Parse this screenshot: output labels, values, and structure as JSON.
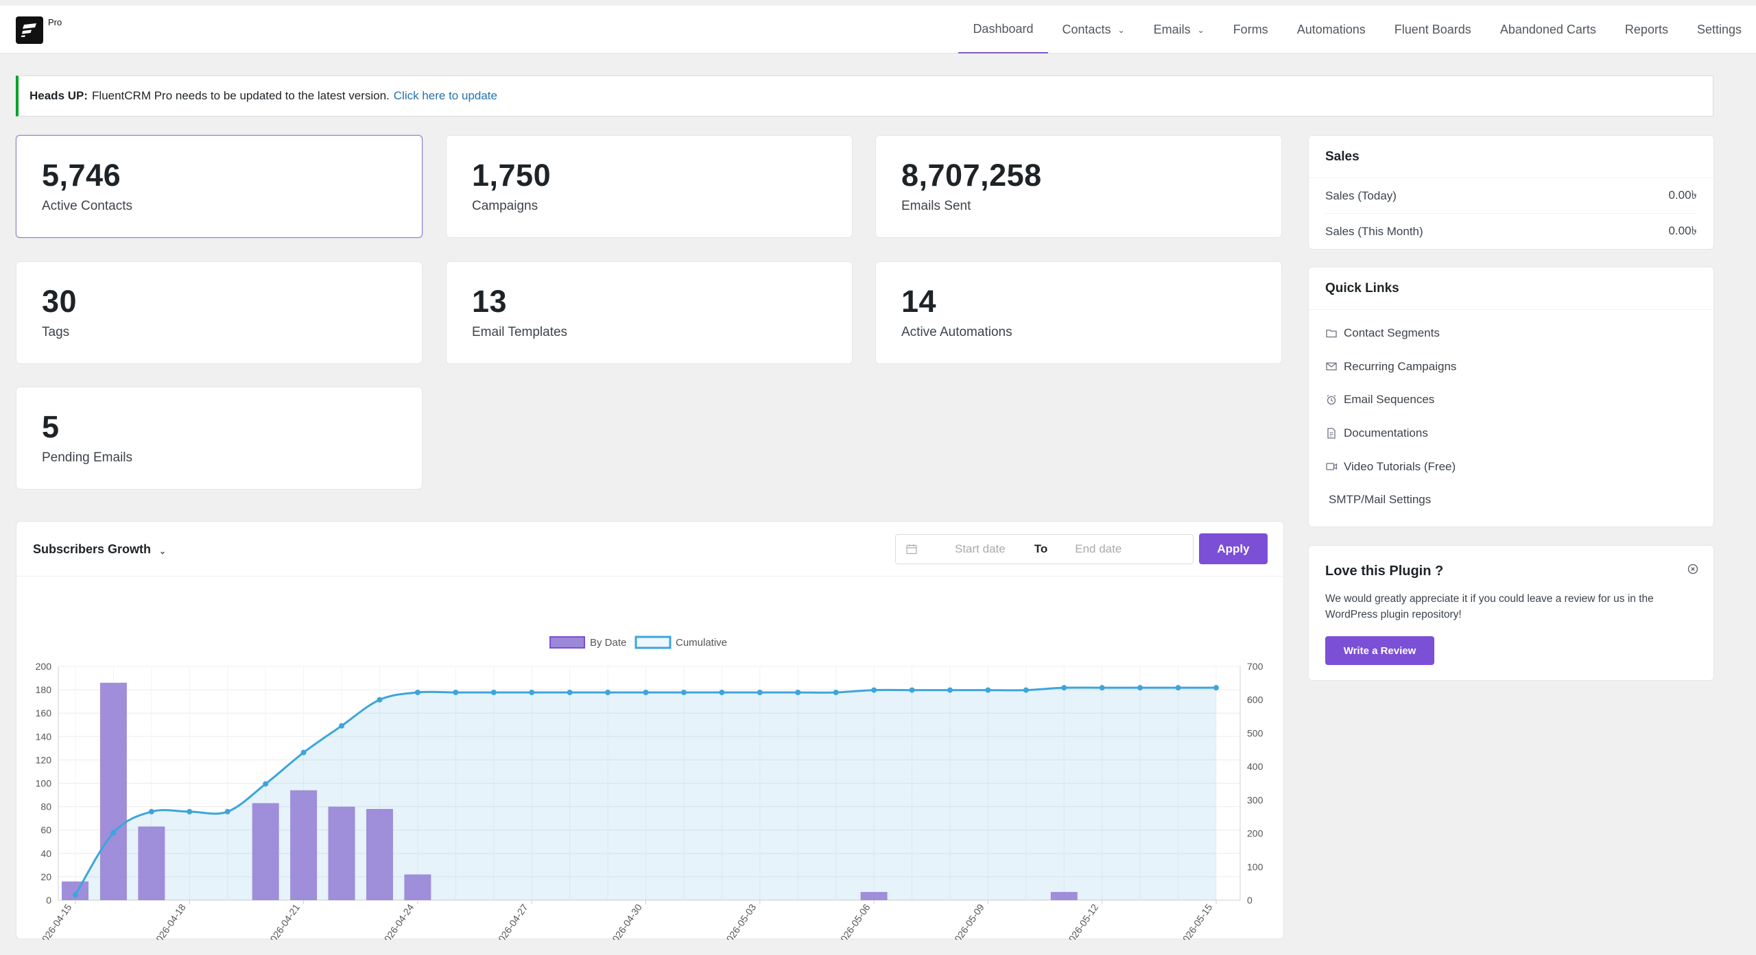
{
  "brand": {
    "badge": "Pro"
  },
  "nav": {
    "items": [
      {
        "label": "Dashboard",
        "active": true,
        "dropdown": false
      },
      {
        "label": "Contacts",
        "active": false,
        "dropdown": true
      },
      {
        "label": "Emails",
        "active": false,
        "dropdown": true
      },
      {
        "label": "Forms",
        "active": false,
        "dropdown": false
      },
      {
        "label": "Automations",
        "active": false,
        "dropdown": false
      },
      {
        "label": "Fluent Boards",
        "active": false,
        "dropdown": false
      },
      {
        "label": "Abandoned Carts",
        "active": false,
        "dropdown": false
      },
      {
        "label": "Reports",
        "active": false,
        "dropdown": false
      },
      {
        "label": "Settings",
        "active": false,
        "dropdown": false
      }
    ]
  },
  "notice": {
    "heading": "Heads UP:",
    "message": "FluentCRM Pro needs to be updated to the latest version.",
    "link": "Click here to update",
    "accent": "#00a32a"
  },
  "stats": [
    {
      "value": "5,746",
      "label": "Active Contacts"
    },
    {
      "value": "1,750",
      "label": "Campaigns"
    },
    {
      "value": "8,707,258",
      "label": "Emails Sent"
    },
    {
      "value": "30",
      "label": "Tags"
    },
    {
      "value": "13",
      "label": "Email Templates"
    },
    {
      "value": "14",
      "label": "Active Automations"
    },
    {
      "value": "5",
      "label": "Pending Emails"
    }
  ],
  "sales": {
    "title": "Sales",
    "rows": [
      {
        "label": "Sales (Today)",
        "value": "0.00৳"
      },
      {
        "label": "Sales (This Month)",
        "value": "0.00৳"
      }
    ]
  },
  "quick_links": {
    "title": "Quick Links",
    "items": [
      {
        "label": "Contact Segments",
        "icon": "folder-icon"
      },
      {
        "label": "Recurring Campaigns",
        "icon": "mail-icon"
      },
      {
        "label": "Email Sequences",
        "icon": "alarm-clock-icon"
      },
      {
        "label": "Documentations",
        "icon": "document-icon"
      },
      {
        "label": "Video Tutorials (Free)",
        "icon": "video-icon"
      },
      {
        "label": "SMTP/Mail Settings",
        "icon": ""
      }
    ]
  },
  "love": {
    "title": "Love this Plugin ?",
    "text": "We would greatly appreciate it if you could leave a review for us in the WordPress plugin repository!",
    "button": "Write a Review"
  },
  "growth": {
    "title": "Subscribers Growth",
    "start_placeholder": "Start date",
    "to_label": "To",
    "end_placeholder": "End date",
    "apply_label": "Apply",
    "accent": "#7b4fd6"
  },
  "chart_data": {
    "type": "bar",
    "x": [
      "2026-04-15",
      "2026-04-16",
      "2026-04-17",
      "2026-04-18",
      "2026-04-19",
      "2026-04-20",
      "2026-04-21",
      "2026-04-22",
      "2026-04-23",
      "2026-04-24",
      "2026-04-25",
      "2026-04-26",
      "2026-04-27",
      "2026-04-28",
      "2026-04-29",
      "2026-04-30",
      "2026-05-01",
      "2026-05-02",
      "2026-05-03",
      "2026-05-04",
      "2026-05-05",
      "2026-05-06",
      "2026-05-07",
      "2026-05-08",
      "2026-05-09",
      "2026-05-10",
      "2026-05-11",
      "2026-05-12",
      "2026-05-13",
      "2026-05-14",
      "2026-05-15"
    ],
    "tick_labels": [
      "2026-04-15",
      "2026-04-18",
      "2026-04-21",
      "2026-04-24",
      "2026-04-27",
      "2026-04-30",
      "2026-05-03",
      "2026-05-06",
      "2026-05-09",
      "2026-05-12",
      "2026-05-15"
    ],
    "series": [
      {
        "name": "By Date",
        "type": "bar",
        "axis": "left",
        "color": "#9b88d8",
        "values": [
          16,
          186,
          63,
          0,
          0,
          83,
          94,
          80,
          78,
          22,
          0,
          0,
          0,
          0,
          0,
          0,
          0,
          0,
          0,
          0,
          0,
          7,
          0,
          0,
          0,
          0,
          7,
          0,
          0,
          0,
          0
        ]
      },
      {
        "name": "Cumulative",
        "type": "line",
        "axis": "right",
        "color": "#3da5dc",
        "values": [
          16,
          202,
          265,
          265,
          265,
          348,
          442,
          522,
          600,
          622,
          622,
          622,
          622,
          622,
          622,
          622,
          622,
          622,
          622,
          622,
          622,
          629,
          629,
          629,
          629,
          629,
          636,
          636,
          636,
          636,
          636
        ]
      }
    ],
    "left_axis": {
      "ylim": [
        0,
        200
      ],
      "ticks": [
        0,
        20,
        40,
        60,
        80,
        100,
        120,
        140,
        160,
        180,
        200
      ]
    },
    "right_axis": {
      "ylim": [
        0,
        700
      ],
      "ticks": [
        0,
        100,
        200,
        300,
        400,
        500,
        600,
        700
      ]
    },
    "legend": "top-center",
    "grid": true
  }
}
